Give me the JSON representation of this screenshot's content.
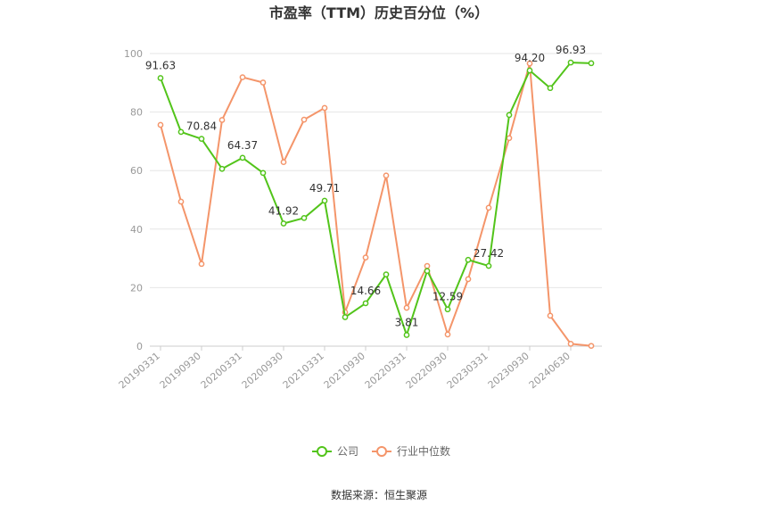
{
  "chart_data": {
    "type": "line",
    "title": "市盈率（TTM）历史百分位（%）",
    "ylim": [
      0,
      100
    ],
    "yticks": [
      0,
      20,
      40,
      60,
      80,
      100
    ],
    "grid": true,
    "legend_position": "bottom",
    "source": "数据来源：恒生聚源",
    "x_tick_labels": [
      "20190331",
      "20190930",
      "20200331",
      "20200930",
      "20210331",
      "20210930",
      "20220331",
      "20220930",
      "20230331",
      "20230930",
      "20240630"
    ],
    "x_tick_indices": [
      0,
      2,
      4,
      6,
      8,
      10,
      12,
      14,
      16,
      18,
      20
    ],
    "point_count": 22,
    "series": [
      {
        "name": "公司",
        "color": "#52c41a",
        "values": [
          91.63,
          73.2,
          70.84,
          60.6,
          64.37,
          59.2,
          41.92,
          43.8,
          49.71,
          9.9,
          14.66,
          24.5,
          3.81,
          25.7,
          12.59,
          29.5,
          27.42,
          79.0,
          94.2,
          88.2,
          96.93,
          96.7
        ],
        "labels": [
          "91.63",
          "",
          "70.84",
          "",
          "64.37",
          "",
          "41.92",
          "",
          "49.71",
          "",
          "14.66",
          "",
          "3.81",
          "",
          "12.59",
          "",
          "27.42",
          "",
          "94.20",
          "",
          "96.93",
          ""
        ]
      },
      {
        "name": "行业中位数",
        "color": "#f4956a",
        "values": [
          75.6,
          49.4,
          28.1,
          77.3,
          91.9,
          90.1,
          62.9,
          77.4,
          81.4,
          11.6,
          30.3,
          58.3,
          13.1,
          27.4,
          4.0,
          22.9,
          47.3,
          71.1,
          96.6,
          10.4,
          0.8,
          0.1
        ]
      }
    ]
  }
}
